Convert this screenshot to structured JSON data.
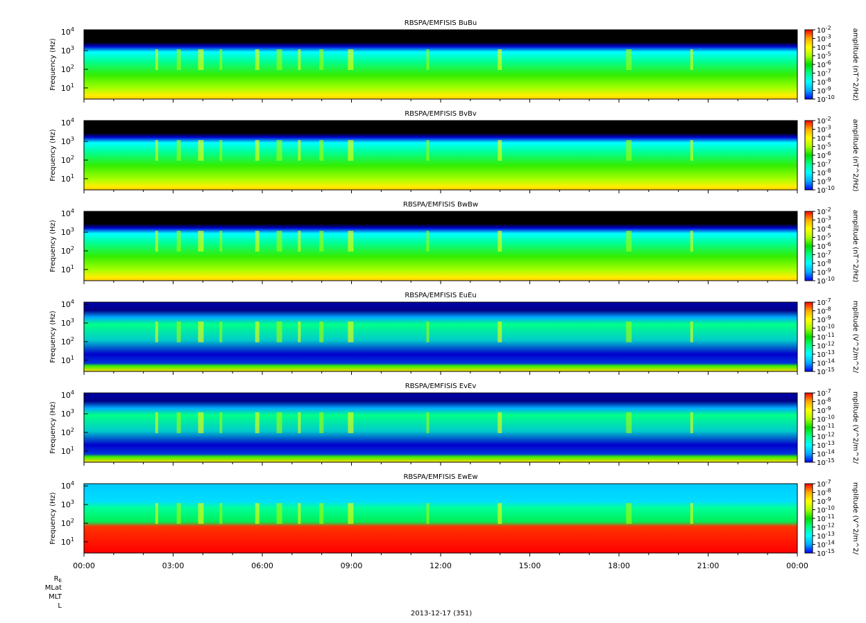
{
  "chart_data": [
    {
      "type": "heatmap",
      "title": "RBSPA/EMFISIS  BuBu",
      "ylabel": "Frequency (Hz)",
      "yscale": "log",
      "y_ticks": [
        {
          "base": "10",
          "exp": "1"
        },
        {
          "base": "10",
          "exp": "2"
        },
        {
          "base": "10",
          "exp": "3"
        },
        {
          "base": "10",
          "exp": "4"
        }
      ],
      "colorbar_label": "amplitude (nT^2/Hz)",
      "colorbar_scale": "log",
      "colorbar_range": [
        -10,
        -2
      ],
      "colorbar_ticks": [
        "-2",
        "-3",
        "-4",
        "-5",
        "-6",
        "-7",
        "-8",
        "-9",
        "-10"
      ]
    },
    {
      "type": "heatmap",
      "title": "RBSPA/EMFISIS  BvBv",
      "ylabel": "Frequency (Hz)",
      "yscale": "log",
      "y_ticks": [
        {
          "base": "10",
          "exp": "1"
        },
        {
          "base": "10",
          "exp": "2"
        },
        {
          "base": "10",
          "exp": "3"
        },
        {
          "base": "10",
          "exp": "4"
        }
      ],
      "colorbar_label": "amplitude (nT^2/Hz)",
      "colorbar_scale": "log",
      "colorbar_range": [
        -10,
        -2
      ],
      "colorbar_ticks": [
        "-2",
        "-3",
        "-4",
        "-5",
        "-6",
        "-7",
        "-8",
        "-9",
        "-10"
      ]
    },
    {
      "type": "heatmap",
      "title": "RBSPA/EMFISIS  BwBw",
      "ylabel": "Frequency (Hz)",
      "yscale": "log",
      "y_ticks": [
        {
          "base": "10",
          "exp": "1"
        },
        {
          "base": "10",
          "exp": "2"
        },
        {
          "base": "10",
          "exp": "3"
        },
        {
          "base": "10",
          "exp": "4"
        }
      ],
      "colorbar_label": "amplitude (nT^2/Hz)",
      "colorbar_scale": "log",
      "colorbar_range": [
        -10,
        -2
      ],
      "colorbar_ticks": [
        "-2",
        "-3",
        "-4",
        "-5",
        "-6",
        "-7",
        "-8",
        "-9",
        "-10"
      ]
    },
    {
      "type": "heatmap",
      "title": "RBSPA/EMFISIS  EuEu",
      "ylabel": "Frequency (Hz)",
      "yscale": "log",
      "y_ticks": [
        {
          "base": "10",
          "exp": "1"
        },
        {
          "base": "10",
          "exp": "2"
        },
        {
          "base": "10",
          "exp": "3"
        },
        {
          "base": "10",
          "exp": "4"
        }
      ],
      "colorbar_label": "mplitude (V^2/m^2/",
      "colorbar_scale": "log",
      "colorbar_range": [
        -15,
        -7
      ],
      "colorbar_ticks": [
        "-7",
        "-8",
        "-9",
        "-10",
        "-11",
        "-12",
        "-13",
        "-14",
        "-15"
      ]
    },
    {
      "type": "heatmap",
      "title": "RBSPA/EMFISIS  EvEv",
      "ylabel": "Frequency (Hz)",
      "yscale": "log",
      "y_ticks": [
        {
          "base": "10",
          "exp": "1"
        },
        {
          "base": "10",
          "exp": "2"
        },
        {
          "base": "10",
          "exp": "3"
        },
        {
          "base": "10",
          "exp": "4"
        }
      ],
      "colorbar_label": "mplitude (V^2/m^2/",
      "colorbar_scale": "log",
      "colorbar_range": [
        -15,
        -7
      ],
      "colorbar_ticks": [
        "-7",
        "-8",
        "-9",
        "-10",
        "-11",
        "-12",
        "-13",
        "-14",
        "-15"
      ]
    },
    {
      "type": "heatmap",
      "title": "RBSPA/EMFISIS  EwEw",
      "ylabel": "Frequency (Hz)",
      "yscale": "log",
      "y_ticks": [
        {
          "base": "10",
          "exp": "1"
        },
        {
          "base": "10",
          "exp": "2"
        },
        {
          "base": "10",
          "exp": "3"
        },
        {
          "base": "10",
          "exp": "4"
        }
      ],
      "colorbar_label": "mplitude (V^2/m^2/",
      "colorbar_scale": "log",
      "colorbar_range": [
        -15,
        -7
      ],
      "colorbar_ticks": [
        "-7",
        "-8",
        "-9",
        "-10",
        "-11",
        "-12",
        "-13",
        "-14",
        "-15"
      ]
    }
  ],
  "x_axis": {
    "ticks": [
      "00:00",
      "03:00",
      "06:00",
      "09:00",
      "12:00",
      "15:00",
      "18:00",
      "21:00",
      "00:00"
    ],
    "ephemeris_rows": [
      "RE",
      "MLat",
      "MLT",
      "L"
    ],
    "date_label": "2013-12-17 (351)"
  },
  "colormap": [
    "#0000ff",
    "#00aaff",
    "#00ffff",
    "#00ff88",
    "#00dd00",
    "#aaff00",
    "#ffff00",
    "#ffaa00",
    "#ff0000"
  ],
  "colors": {
    "background": "#000000",
    "foreground": "#000000"
  }
}
